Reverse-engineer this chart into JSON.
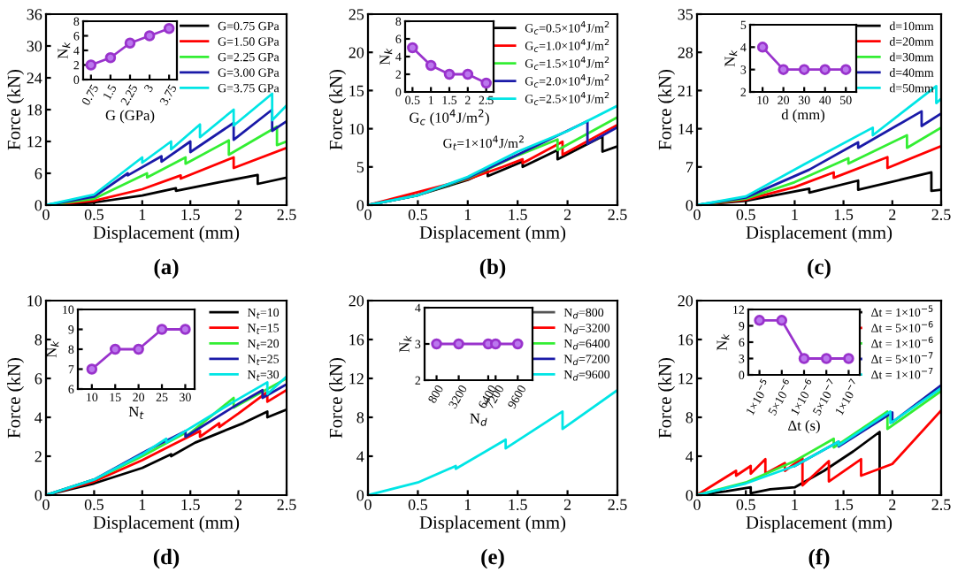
{
  "chart_data": [
    {
      "type": "line",
      "title": "(a)",
      "xlabel": "Displacement (mm)",
      "ylabel": "Force (kN)",
      "xlim": [
        0,
        2.5
      ],
      "xticks": [
        0,
        0.5,
        1,
        1.5,
        2,
        2.5
      ],
      "ylim": [
        0,
        36
      ],
      "yticks": [
        0,
        6,
        12,
        18,
        24,
        30,
        36
      ],
      "legend": "top right",
      "series": [
        {
          "name": "G=0.75 GPa",
          "color": "#000000",
          "x": [
            0,
            0.5,
            1.0,
            1.35,
            1.35,
            1.8,
            2.2,
            2.2,
            2.5
          ],
          "values": [
            0,
            0.5,
            1.8,
            3.2,
            2.7,
            4.3,
            5.7,
            4.0,
            5.2
          ]
        },
        {
          "name": "G=1.50 GPa",
          "color": "#ff0000",
          "x": [
            0,
            0.5,
            1.0,
            1.4,
            1.4,
            1.95,
            1.95,
            2.5
          ],
          "values": [
            0,
            0.8,
            3.0,
            5.6,
            5.0,
            9.0,
            7.0,
            10.8
          ]
        },
        {
          "name": "G=2.25 GPa",
          "color": "#33ee33",
          "x": [
            0,
            0.5,
            1.05,
            1.05,
            1.45,
            1.45,
            1.9,
            1.9,
            2.4,
            2.4,
            2.5
          ],
          "values": [
            0,
            1.2,
            6.0,
            5.2,
            9.0,
            7.8,
            12.2,
            9.5,
            14.8,
            11.3,
            12.0
          ]
        },
        {
          "name": "G=3.00 GPa",
          "color": "#1a1aa8",
          "x": [
            0,
            0.5,
            0.85,
            0.85,
            1.2,
            1.2,
            1.5,
            1.5,
            1.95,
            1.95,
            2.35,
            2.35,
            2.5
          ],
          "values": [
            0,
            1.6,
            6.0,
            5.6,
            9.2,
            8.2,
            12.0,
            10.0,
            15.5,
            12.3,
            18.0,
            14.0,
            15.8
          ]
        },
        {
          "name": "G=3.75 GPa",
          "color": "#00e5e5",
          "x": [
            0,
            0.5,
            1.0,
            1.0,
            1.3,
            1.3,
            1.6,
            1.6,
            1.95,
            1.95,
            2.35,
            2.35,
            2.5
          ],
          "values": [
            0,
            2.0,
            9.0,
            8.0,
            12.0,
            10.5,
            15.2,
            12.8,
            18.0,
            15.0,
            21.0,
            16.0,
            18.8
          ]
        }
      ]
    },
    {
      "type": "line",
      "xlabel": "G (GPa)",
      "ylabel": "N$_{k}$",
      "x": [
        0.75,
        1.5,
        2.25,
        3,
        3.75
      ],
      "xlim": [
        0.45,
        4.05
      ],
      "xticks": [
        0.75,
        1.5,
        2.25,
        3,
        3.75
      ],
      "ylim": [
        0,
        8
      ],
      "yticks": [
        0,
        2,
        4,
        6,
        8
      ],
      "marker": "circle",
      "series": [
        {
          "color": "#9933cc",
          "values": [
            2,
            3,
            5,
            6,
            7
          ]
        }
      ]
    },
    {
      "type": "line",
      "title": "(b)",
      "xlabel": "Displacement (mm)",
      "ylabel": "Force (kN)",
      "xlim": [
        0,
        2.5
      ],
      "xticks": [
        0,
        0.5,
        1,
        1.5,
        2,
        2.5
      ],
      "ylim": [
        0,
        25
      ],
      "yticks": [
        0,
        5,
        10,
        15,
        20,
        25
      ],
      "legend": "top right",
      "annotations": [
        "G$_{t}$=1×10$^{4}$J/m$^{2}$"
      ],
      "series": [
        {
          "name": "G$_{c}$=0.5×10$^{4}$J/m$^{2}$",
          "color": "#000000",
          "x": [
            0,
            0.5,
            1.0,
            1.2,
            1.2,
            1.55,
            1.55,
            1.9,
            1.9,
            2.35,
            2.35,
            2.5
          ],
          "values": [
            0,
            1.3,
            3.3,
            4.5,
            3.8,
            5.7,
            5.0,
            7.2,
            6.0,
            9.0,
            7.0,
            7.7
          ]
        },
        {
          "name": "G$_{c}$=1.0×10$^{4}$J/m$^{2}$",
          "color": "#ff0000",
          "x": [
            0,
            1.0,
            1.35,
            1.55,
            1.55,
            1.95,
            1.95,
            2.5
          ],
          "values": [
            0,
            3.4,
            5.0,
            6.0,
            5.5,
            8.3,
            6.6,
            10.5
          ]
        },
        {
          "name": "G$_{c}$=1.5×10$^{4}$J/m$^{2}$",
          "color": "#33ee33",
          "x": [
            0,
            0.5,
            1.0,
            1.5,
            1.9,
            1.9,
            2.5
          ],
          "values": [
            0,
            1.3,
            3.5,
            6.5,
            8.6,
            7.2,
            11.5
          ]
        },
        {
          "name": "G$_{c}$=2.0×10$^{4}$J/m$^{2}$",
          "color": "#1a1aa8",
          "x": [
            0,
            0.5,
            1.0,
            1.5,
            2.2,
            2.2,
            2.5
          ],
          "values": [
            0,
            1.3,
            3.6,
            6.6,
            11.0,
            8.0,
            10.2
          ]
        },
        {
          "name": "G$_{c}$=2.5×10$^{4}$J/m$^{2}$",
          "color": "#00e5e5",
          "x": [
            0,
            0.5,
            1.0,
            1.5,
            2.0,
            2.5
          ],
          "values": [
            0,
            1.3,
            3.7,
            7.0,
            9.7,
            13.0
          ]
        }
      ]
    },
    {
      "type": "line",
      "xlabel": "G$_{c}$ (10$^{4}$J/m$^{2}$)",
      "ylabel": "N$_{k}$",
      "x": [
        0.5,
        1.0,
        1.5,
        2.0,
        2.5
      ],
      "xlim": [
        0.3,
        2.7
      ],
      "xticks": [
        0.5,
        1,
        1.5,
        2,
        2.5
      ],
      "ylim": [
        0,
        8
      ],
      "yticks": [
        0,
        2,
        4,
        6,
        8
      ],
      "marker": "circle",
      "series": [
        {
          "color": "#9933cc",
          "values": [
            5,
            3,
            2,
            2,
            1
          ]
        }
      ]
    },
    {
      "type": "line",
      "title": "(c)",
      "xlabel": "Displacement (mm)",
      "ylabel": "Force (kN)",
      "xlim": [
        0,
        2.5
      ],
      "xticks": [
        0,
        0.5,
        1,
        1.5,
        2,
        2.5
      ],
      "ylim": [
        0,
        35
      ],
      "yticks": [
        0,
        7,
        14,
        21,
        28,
        35
      ],
      "legend": "top right",
      "series": [
        {
          "name": "d=10mm",
          "color": "#000000",
          "x": [
            0,
            0.5,
            1.15,
            1.15,
            1.65,
            1.65,
            2.4,
            2.4,
            2.5
          ],
          "values": [
            0,
            0.8,
            3.0,
            2.3,
            4.5,
            2.8,
            6.0,
            2.6,
            2.8
          ]
        },
        {
          "name": "d=20mm",
          "color": "#ff0000",
          "x": [
            0,
            0.5,
            1.0,
            1.4,
            1.4,
            1.95,
            1.95,
            2.5
          ],
          "values": [
            0,
            1.0,
            3.3,
            6.0,
            5.0,
            8.8,
            6.8,
            10.8
          ]
        },
        {
          "name": "d=30mm",
          "color": "#33ee33",
          "x": [
            0,
            0.5,
            1.0,
            1.55,
            1.55,
            2.15,
            2.15,
            2.5
          ],
          "values": [
            0,
            1.2,
            4.2,
            8.6,
            7.6,
            12.8,
            10.5,
            14.2
          ]
        },
        {
          "name": "d=40mm",
          "color": "#1a1aa8",
          "x": [
            0,
            0.5,
            1.15,
            1.65,
            1.65,
            2.3,
            2.3,
            2.5
          ],
          "values": [
            0,
            1.4,
            6.5,
            11.5,
            10.5,
            17.2,
            14.5,
            16.8
          ]
        },
        {
          "name": "d=50mm",
          "color": "#00e5e5",
          "x": [
            0,
            0.5,
            1.1,
            1.8,
            1.8,
            2.45,
            2.45,
            2.5
          ],
          "values": [
            0,
            1.6,
            7.5,
            14.2,
            12.8,
            21.8,
            18.7,
            19.5
          ]
        }
      ]
    },
    {
      "type": "line",
      "xlabel": "d (mm)",
      "ylabel": "N$_{k}$",
      "x": [
        10,
        20,
        30,
        40,
        50
      ],
      "xlim": [
        4,
        55
      ],
      "xticks": [
        10,
        20,
        30,
        40,
        50
      ],
      "ylim": [
        2,
        5
      ],
      "yticks": [
        2,
        3,
        4,
        5
      ],
      "marker": "circle",
      "series": [
        {
          "color": "#9933cc",
          "values": [
            4,
            3,
            3,
            3,
            3
          ]
        }
      ]
    },
    {
      "type": "line",
      "title": "(d)",
      "xlabel": "Displacement (mm)",
      "ylabel": "Force (kN)",
      "xlim": [
        0,
        2.5
      ],
      "xticks": [
        0,
        0.5,
        1,
        1.5,
        2,
        2.5
      ],
      "ylim": [
        0,
        10
      ],
      "yticks": [
        0,
        2,
        4,
        6,
        8,
        10
      ],
      "legend": "top right",
      "series": [
        {
          "name": "N$_{t}$=10",
          "color": "#000000",
          "x": [
            0,
            0.5,
            1.0,
            1.3,
            1.3,
            1.55,
            1.8,
            2.05,
            2.3,
            2.3,
            2.5
          ],
          "values": [
            0,
            0.6,
            1.4,
            2.1,
            2.0,
            2.7,
            3.2,
            3.7,
            4.3,
            4.0,
            4.4
          ]
        },
        {
          "name": "N$_{t}$=15",
          "color": "#ff0000",
          "x": [
            0,
            0.5,
            1.0,
            1.6,
            1.6,
            1.8,
            1.8,
            2.0,
            2.3,
            2.3,
            2.5
          ],
          "values": [
            0,
            0.7,
            1.8,
            3.3,
            3.0,
            3.7,
            3.5,
            4.2,
            5.3,
            4.8,
            5.4
          ]
        },
        {
          "name": "N$_{t}$=20",
          "color": "#33ee33",
          "x": [
            0,
            0.5,
            1.0,
            1.45,
            1.45,
            1.95,
            1.95,
            2.5
          ],
          "values": [
            0,
            0.8,
            2.0,
            3.2,
            3.0,
            5.0,
            4.5,
            6.0
          ]
        },
        {
          "name": "N$_{t}$=25",
          "color": "#1a1aa8",
          "x": [
            0,
            0.5,
            1.05,
            1.45,
            1.45,
            2.0,
            2.25,
            2.25,
            2.5
          ],
          "values": [
            0,
            0.8,
            2.3,
            3.3,
            3.0,
            4.7,
            5.4,
            5.0,
            5.7
          ]
        },
        {
          "name": "N$_{t}$=30",
          "color": "#00e5e5",
          "x": [
            0,
            0.5,
            1.0,
            1.25,
            1.25,
            1.95,
            2.3,
            2.3,
            2.5
          ],
          "values": [
            0,
            0.8,
            2.1,
            2.9,
            2.7,
            4.8,
            5.8,
            5.2,
            6.1
          ]
        }
      ]
    },
    {
      "type": "line",
      "xlabel": "N$_{t}$",
      "ylabel": "N$_{k}$",
      "x": [
        10,
        15,
        20,
        25,
        30
      ],
      "xlim": [
        7,
        32
      ],
      "xticks": [
        10,
        15,
        20,
        25,
        30
      ],
      "ylim": [
        6,
        10
      ],
      "yticks": [
        6,
        7,
        8,
        9,
        10
      ],
      "marker": "circle",
      "series": [
        {
          "color": "#9933cc",
          "values": [
            7,
            8,
            8,
            9,
            9
          ]
        }
      ]
    },
    {
      "type": "line",
      "title": "(e)",
      "xlabel": "Displacement (mm)",
      "ylabel": "Force (kN)",
      "xlim": [
        0,
        2.5
      ],
      "xticks": [
        0,
        0.5,
        1,
        1.5,
        2,
        2.5
      ],
      "ylim": [
        0,
        20
      ],
      "yticks": [
        0,
        4,
        8,
        12,
        16,
        20
      ],
      "legend": "top right",
      "x": [
        0,
        0.5,
        0.88,
        0.88,
        1.38,
        1.38,
        1.95,
        1.95,
        2.5
      ],
      "series": [
        {
          "name": "N$_{d}$=800",
          "color": "#555555",
          "values": [
            null,
            null,
            null,
            null,
            null,
            null,
            null,
            null,
            null
          ]
        },
        {
          "name": "N$_{d}$=3200",
          "color": "#ff0000",
          "values": [
            null,
            null,
            null,
            null,
            null,
            null,
            null,
            null,
            null
          ]
        },
        {
          "name": "N$_{d}$=6400",
          "color": "#33ee33",
          "values": [
            null,
            null,
            null,
            null,
            null,
            null,
            null,
            null,
            null
          ]
        },
        {
          "name": "N$_{d}$=7200",
          "color": "#1a1aa8",
          "values": [
            null,
            null,
            null,
            null,
            null,
            null,
            null,
            null,
            null
          ]
        },
        {
          "name": "N$_{d}$=9600",
          "color": "#00e5e5",
          "values": [
            0,
            1.3,
            3.0,
            2.7,
            5.7,
            4.8,
            8.6,
            6.8,
            10.8
          ]
        }
      ]
    },
    {
      "type": "line",
      "xlabel": "N$_{d}$",
      "ylabel": "N$_{k}$",
      "x": [
        800,
        3200,
        6400,
        7200,
        9600
      ],
      "xlim": [
        -500,
        11200
      ],
      "xticks": [
        800,
        3200,
        6400,
        7200,
        9600
      ],
      "ylim": [
        2,
        4
      ],
      "yticks": [
        2,
        3,
        4
      ],
      "marker": "circle",
      "series": [
        {
          "color": "#9933cc",
          "values": [
            3,
            3,
            3,
            3,
            3
          ]
        }
      ]
    },
    {
      "type": "line",
      "title": "(f)",
      "xlabel": "Displacement (mm)",
      "ylabel": "Force (kN)",
      "xlim": [
        0,
        2.5
      ],
      "xticks": [
        0,
        0.5,
        1,
        1.5,
        2,
        2.5
      ],
      "ylim": [
        0,
        20
      ],
      "yticks": [
        0,
        4,
        8,
        12,
        16,
        20
      ],
      "legend": "top right",
      "series": [
        {
          "name": "Δt = 1×10$^{−5}$",
          "color": "#000000",
          "x": [
            0,
            0.3,
            0.55,
            0.55,
            0.75,
            1.0,
            1.3,
            1.6,
            1.87,
            1.87
          ],
          "values": [
            0,
            0.4,
            0.8,
            0.2,
            0.6,
            0.8,
            2.5,
            4.5,
            6.5,
            0
          ]
        },
        {
          "name": "Δt = 5×10$^{−6}$",
          "color": "#ff0000",
          "x": [
            0,
            0.4,
            0.4,
            0.55,
            0.55,
            0.7,
            0.7,
            0.9,
            0.9,
            1.08,
            1.08,
            1.35,
            1.35,
            1.68,
            1.68,
            2.0,
            2.5
          ],
          "values": [
            0,
            2.5,
            2.0,
            3.0,
            2.2,
            3.7,
            2.2,
            3.3,
            2.5,
            3.8,
            1.0,
            3.5,
            1.4,
            3.7,
            2.0,
            3.2,
            8.7
          ]
        },
        {
          "name": "Δt = 1×10$^{−6}$",
          "color": "#33ee33",
          "x": [
            0,
            0.5,
            1.0,
            1.4,
            1.4,
            1.95,
            1.95,
            2.5
          ],
          "values": [
            0,
            1.3,
            3.5,
            5.8,
            4.9,
            8.6,
            6.8,
            10.7
          ]
        },
        {
          "name": "Δt = 5×10$^{−7}$",
          "color": "#1a1aa8",
          "x": [
            1.0,
            1.45,
            1.45,
            2.0,
            2.0,
            2.5
          ],
          "values": [
            3.0,
            5.5,
            5.0,
            8.5,
            7.5,
            11.3
          ]
        },
        {
          "name": "Δt = 1×10$^{−7}$",
          "color": "#00e5e5",
          "x": [
            0,
            0.5,
            1.0,
            1.45,
            1.45,
            1.98,
            1.98,
            2.5
          ],
          "values": [
            0,
            1.2,
            3.0,
            5.5,
            5.1,
            8.6,
            7.4,
            11.0
          ]
        }
      ]
    },
    {
      "type": "line",
      "xlabel": "Δt (s)",
      "ylabel": "N$_{k}$",
      "categories": [
        "1×10$^{−5}$",
        "5×10$^{−6}$",
        "1×10$^{−6}$",
        "5×10$^{−7}$",
        "1×10$^{−7}$"
      ],
      "ylim": [
        0,
        12
      ],
      "yticks": [
        0,
        3,
        6,
        9,
        12
      ],
      "marker": "circle",
      "series": [
        {
          "color": "#9933cc",
          "values": [
            10,
            10,
            3,
            3,
            3
          ]
        }
      ]
    }
  ]
}
